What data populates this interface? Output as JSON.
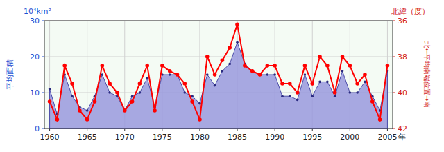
{
  "chart_data": {
    "type": "line",
    "x": [
      1960,
      1961,
      1962,
      1963,
      1964,
      1965,
      1966,
      1967,
      1968,
      1969,
      1970,
      1971,
      1972,
      1973,
      1974,
      1975,
      1976,
      1977,
      1978,
      1979,
      1980,
      1981,
      1982,
      1983,
      1984,
      1985,
      1986,
      1987,
      1988,
      1989,
      1990,
      1991,
      1992,
      1993,
      1994,
      1995,
      1996,
      1997,
      1998,
      1999,
      2000,
      2001,
      2002,
      2003,
      2004,
      2005
    ],
    "series": [
      {
        "type": "area",
        "color": "#9999dd",
        "marker": "circle",
        "values": [
          11,
          4,
          15,
          9,
          6,
          5,
          9,
          15,
          10,
          9,
          5,
          9,
          10,
          14,
          6,
          15,
          15,
          15,
          10,
          9,
          7,
          15,
          12,
          16,
          18,
          24,
          18,
          16,
          15,
          15,
          15,
          9,
          9,
          8,
          15,
          9,
          13,
          13,
          9,
          16,
          10,
          10,
          13,
          9,
          5,
          16
        ]
      },
      {
        "type": "line",
        "axis": "y2",
        "color": "#ff0000",
        "marker": "circle",
        "values": [
          40.5,
          41.5,
          38.5,
          39.5,
          41.0,
          41.5,
          40.5,
          38.5,
          39.5,
          40.0,
          41.0,
          40.5,
          39.5,
          38.5,
          41.0,
          38.5,
          38.8,
          39.0,
          39.5,
          40.5,
          41.5,
          38.0,
          39.0,
          38.2,
          37.5,
          36.2,
          38.5,
          38.8,
          39.0,
          38.5,
          38.5,
          39.5,
          39.5,
          40.0,
          38.5,
          39.5,
          38.0,
          38.5,
          40.0,
          38.0,
          38.5,
          39.5,
          39.0,
          40.5,
          41.5,
          38.5
        ]
      }
    ],
    "xlim": [
      1959.3,
      2005.7
    ],
    "xticks": [
      1960,
      1965,
      1970,
      1975,
      1980,
      1985,
      1990,
      1995,
      2000,
      2005
    ],
    "ylim": [
      0,
      30
    ],
    "yticks": [
      0,
      10,
      20,
      30
    ],
    "y2lim": [
      42,
      36
    ],
    "y2ticks": [
      36,
      38,
      40,
      42
    ],
    "x_label": "年",
    "y_label": "平均面積",
    "y2_label": "北←平均南端位置→南",
    "annotations": [
      "10⁴km²",
      "北緯（度）"
    ],
    "grid": true
  }
}
